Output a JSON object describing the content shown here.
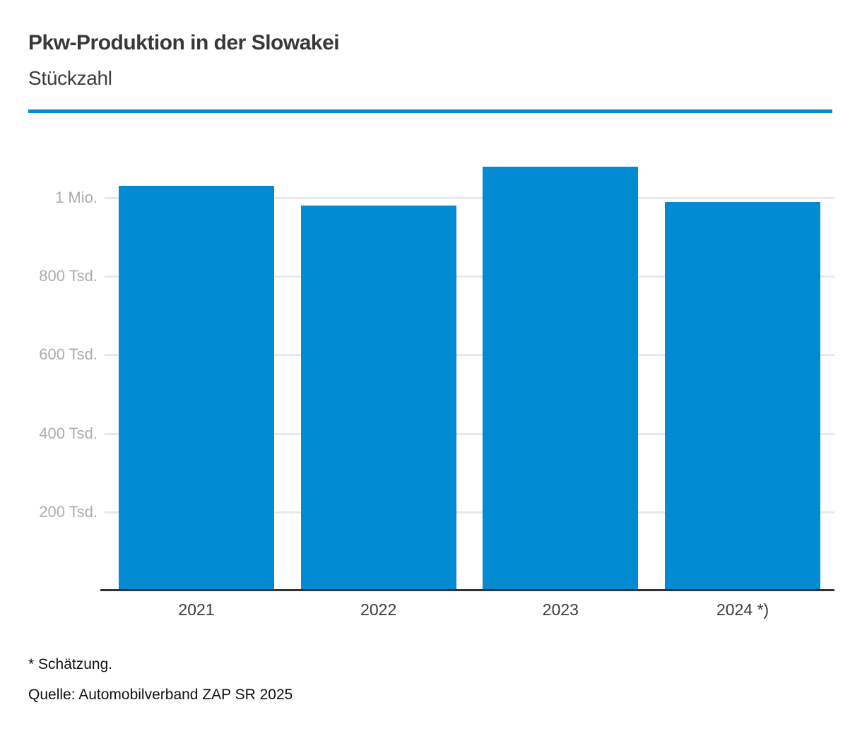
{
  "header": {
    "title": "Pkw-Produktion in der Slowakei",
    "subtitle": "Stückzahl"
  },
  "chart_data": {
    "type": "bar",
    "title": "Pkw-Produktion in der Slowakei",
    "subtitle": "Stückzahl",
    "categories": [
      "2021",
      "2022",
      "2023",
      "2024 *)"
    ],
    "values": [
      1030000,
      980000,
      1080000,
      990000
    ],
    "xlabel": "",
    "ylabel": "Stückzahl",
    "ylim": [
      0,
      1144000
    ],
    "yticks": [
      {
        "value": 200000,
        "label": "200 Tsd."
      },
      {
        "value": 400000,
        "label": "400 Tsd."
      },
      {
        "value": 600000,
        "label": "600 Tsd."
      },
      {
        "value": 800000,
        "label": "800 Tsd."
      },
      {
        "value": 1000000,
        "label": "1 Mio."
      }
    ],
    "grid": true,
    "legend": "none",
    "bar_color": "#008bd2"
  },
  "footer": {
    "footnote": "* Schätzung.",
    "source": "Quelle: Automobilverband ZAP SR 2025"
  },
  "colors": {
    "accent": "#008bd2",
    "divider": "#008bd2",
    "grid": "#e8e8e8",
    "axis": "#323232",
    "y_tick_label": "#aaadb2",
    "x_tick_label": "#3a3a3a",
    "title_text": "#383838",
    "footer_text": "#111111"
  }
}
